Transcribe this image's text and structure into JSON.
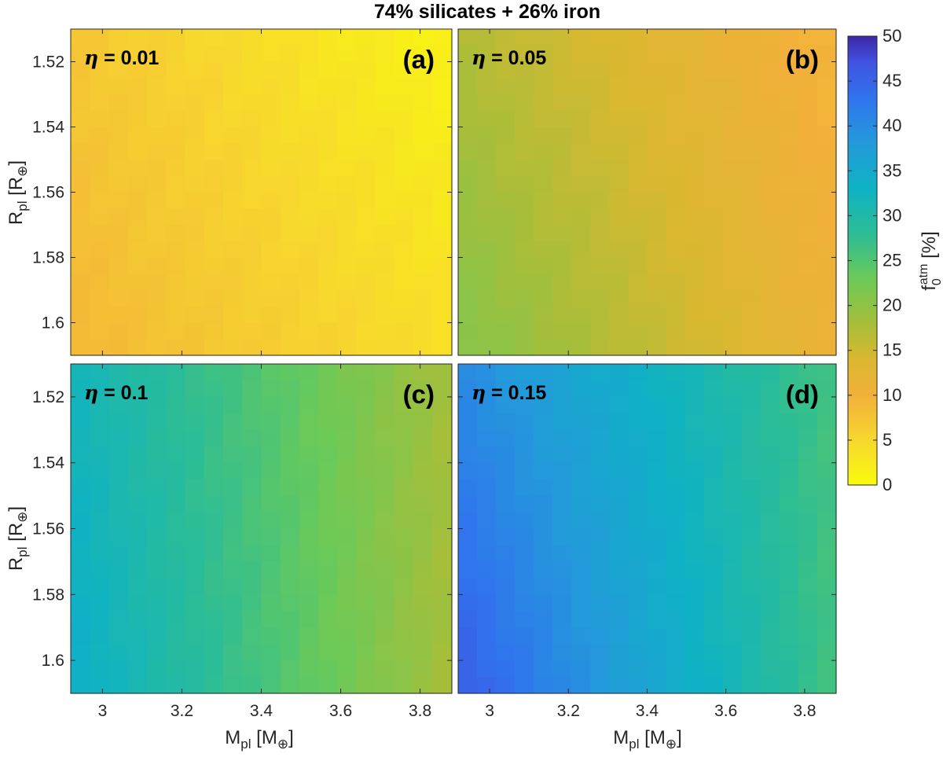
{
  "figure": {
    "title": "74% silicates + 26% iron",
    "xlabel": {
      "main": "M",
      "sub": "pl",
      "unit_open": " [M",
      "unit_sub": "⊕",
      "unit_close": "]"
    },
    "ylabel": {
      "main": "R",
      "sub": "pl",
      "unit_open": " [R",
      "unit_sub": "⊕",
      "unit_close": "]"
    },
    "colorbar_label": {
      "main": "f",
      "sub": "0",
      "sup": "atm",
      "unit": " [%]"
    }
  },
  "chart_data": {
    "type": "heatmap",
    "x_range": [
      2.92,
      3.88
    ],
    "y_range": [
      1.51,
      1.61
    ],
    "y_reversed": true,
    "x_ticks": [
      3,
      3.2,
      3.4,
      3.6,
      3.8
    ],
    "x_tick_labels": [
      "3",
      "3.2",
      "3.4",
      "3.6",
      "3.8"
    ],
    "y_ticks": [
      1.52,
      1.54,
      1.56,
      1.58,
      1.6
    ],
    "y_tick_labels": [
      "1.52",
      "1.54",
      "1.56",
      "1.58",
      "1.6"
    ],
    "grid_cells": {
      "nx": 20,
      "ny": 20
    },
    "colorbar": {
      "colormap": "parula",
      "range": [
        0,
        50
      ],
      "ticks": [
        0,
        5,
        10,
        15,
        20,
        25,
        30,
        35,
        40,
        45,
        50
      ],
      "tick_labels": [
        "0",
        "5",
        "10",
        "15",
        "20",
        "25",
        "30",
        "35",
        "40",
        "45",
        "50"
      ],
      "label": "f0atm [%]"
    },
    "panels": [
      {
        "id": "a",
        "panel_label": "(a)",
        "eta_symbol": "η",
        "eta_text": " = 0.01",
        "eta": 0.01,
        "corner_values": {
          "top_left": 7,
          "top_right": 1,
          "bottom_left": 9,
          "bottom_right": 4
        }
      },
      {
        "id": "b",
        "panel_label": "(b)",
        "eta_symbol": "η",
        "eta_text": " = 0.05",
        "eta": 0.05,
        "corner_values": {
          "top_left": 17,
          "top_right": 9,
          "bottom_left": 21,
          "bottom_right": 11
        }
      },
      {
        "id": "c",
        "panel_label": "(c)",
        "eta_symbol": "η",
        "eta_text": " = 0.1",
        "eta": 0.1,
        "corner_values": {
          "top_left": 32,
          "top_right": 18,
          "bottom_left": 34,
          "bottom_right": 18
        }
      },
      {
        "id": "d",
        "panel_label": "(d)",
        "eta_symbol": "η",
        "eta_text": " = 0.15",
        "eta": 0.15,
        "corner_values": {
          "top_left": 40,
          "top_right": 26,
          "bottom_left": 46,
          "bottom_right": 26
        }
      }
    ]
  }
}
